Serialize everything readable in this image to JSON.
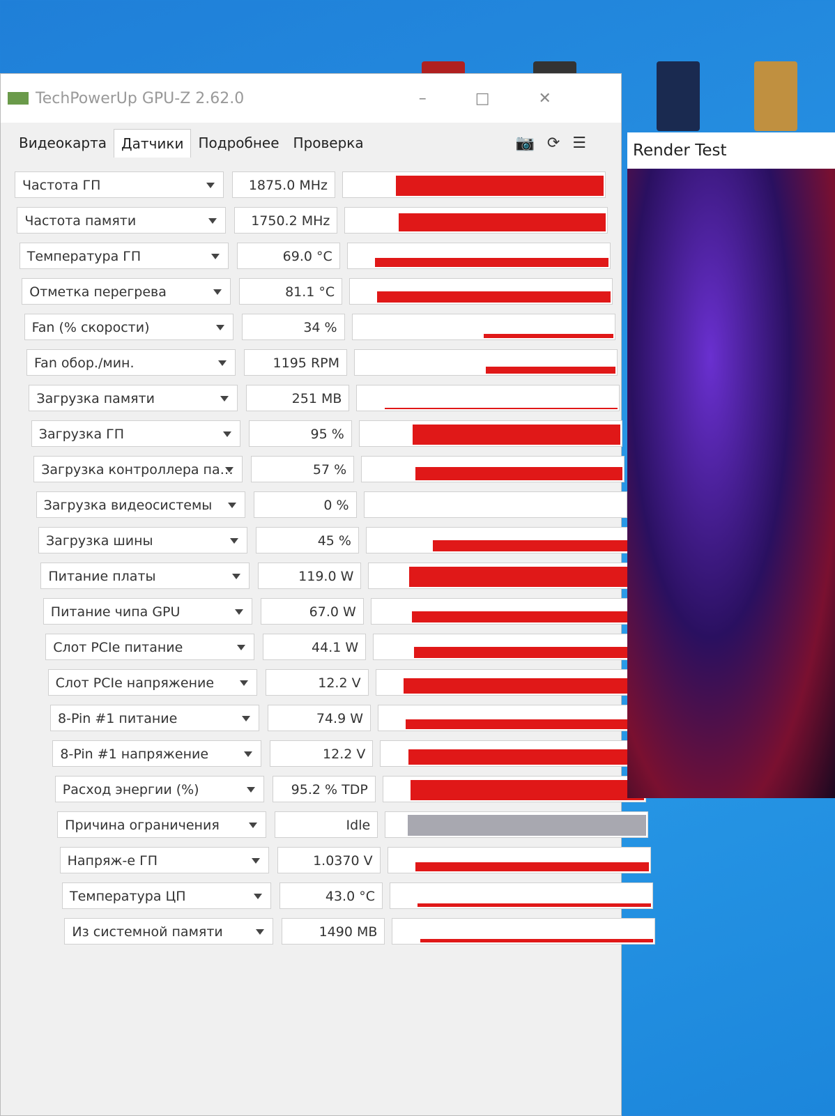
{
  "window": {
    "title": "TechPowerUp GPU-Z 2.62.0",
    "tabs": [
      "Видеокарта",
      "Датчики",
      "Подробнее",
      "Проверка"
    ],
    "sensors": [
      {
        "label": "Частота ГП",
        "value": "1875.0 MHz"
      },
      {
        "label": "Частота памяти",
        "value": "1750.2 MHz"
      },
      {
        "label": "Температура ГП",
        "value": "69.0 °C"
      },
      {
        "label": "Отметка перегрева",
        "value": "81.1 °C"
      },
      {
        "label": "Fan (% скорости)",
        "value": "34 %"
      },
      {
        "label": "Fan обор./мин.",
        "value": "1195 RPM"
      },
      {
        "label": "Загрузка памяти",
        "value": "251 MB"
      },
      {
        "label": "Загрузка ГП",
        "value": "95 %"
      },
      {
        "label": "Загрузка контроллера па…",
        "value": "57 %"
      },
      {
        "label": "Загрузка видеосистемы",
        "value": "0 %"
      },
      {
        "label": "Загрузка шины",
        "value": "45 %"
      },
      {
        "label": "Питание платы",
        "value": "119.0 W"
      },
      {
        "label": "Питание чипа GPU",
        "value": "67.0 W"
      },
      {
        "label": "Слот PCIe питание",
        "value": "44.1 W"
      },
      {
        "label": "Слот PCIe напряжение",
        "value": "12.2 V"
      },
      {
        "label": "8-Pin #1 питание",
        "value": "74.9 W"
      },
      {
        "label": "8-Pin #1 напряжение",
        "value": "12.2 V"
      },
      {
        "label": "Расход энергии (%)",
        "value": "95.2 % TDP"
      },
      {
        "label": "Причина ограничения",
        "value": "Idle"
      },
      {
        "label": "Напряж-е ГП",
        "value": "1.0370 V"
      },
      {
        "label": "Температура ЦП",
        "value": "43.0 °C"
      },
      {
        "label": "Из системной памяти",
        "value": "1490 MB"
      }
    ]
  },
  "render_test": {
    "title": "Render Test"
  }
}
